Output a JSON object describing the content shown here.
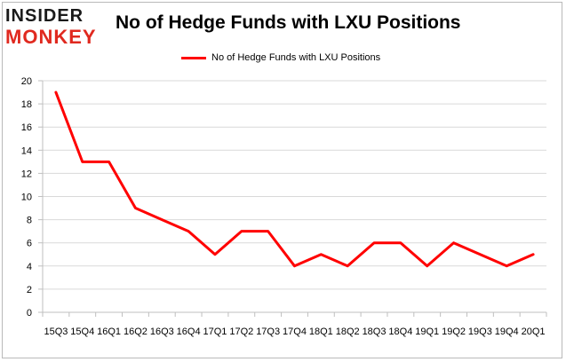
{
  "logo": {
    "line1": "INSIDER",
    "line2": "MONKEY"
  },
  "chart_data": {
    "type": "line",
    "title": "No of Hedge Funds with LXU Positions",
    "xlabel": "",
    "ylabel": "",
    "ylim": [
      0,
      20
    ],
    "yticks": [
      0,
      2,
      4,
      6,
      8,
      10,
      12,
      14,
      16,
      18,
      20
    ],
    "grid": true,
    "legend_position": "top-center",
    "categories": [
      "15Q3",
      "15Q4",
      "16Q1",
      "16Q2",
      "16Q3",
      "16Q4",
      "17Q1",
      "17Q2",
      "17Q3",
      "17Q4",
      "18Q1",
      "18Q2",
      "18Q3",
      "18Q4",
      "19Q1",
      "19Q2",
      "19Q3",
      "19Q4",
      "20Q1"
    ],
    "series": [
      {
        "name": "No of Hedge Funds with LXU Positions",
        "color": "#ff0000",
        "values": [
          19,
          13,
          13,
          9,
          8,
          7,
          5,
          7,
          7,
          4,
          5,
          4,
          6,
          6,
          4,
          6,
          5,
          4,
          5
        ]
      }
    ]
  }
}
